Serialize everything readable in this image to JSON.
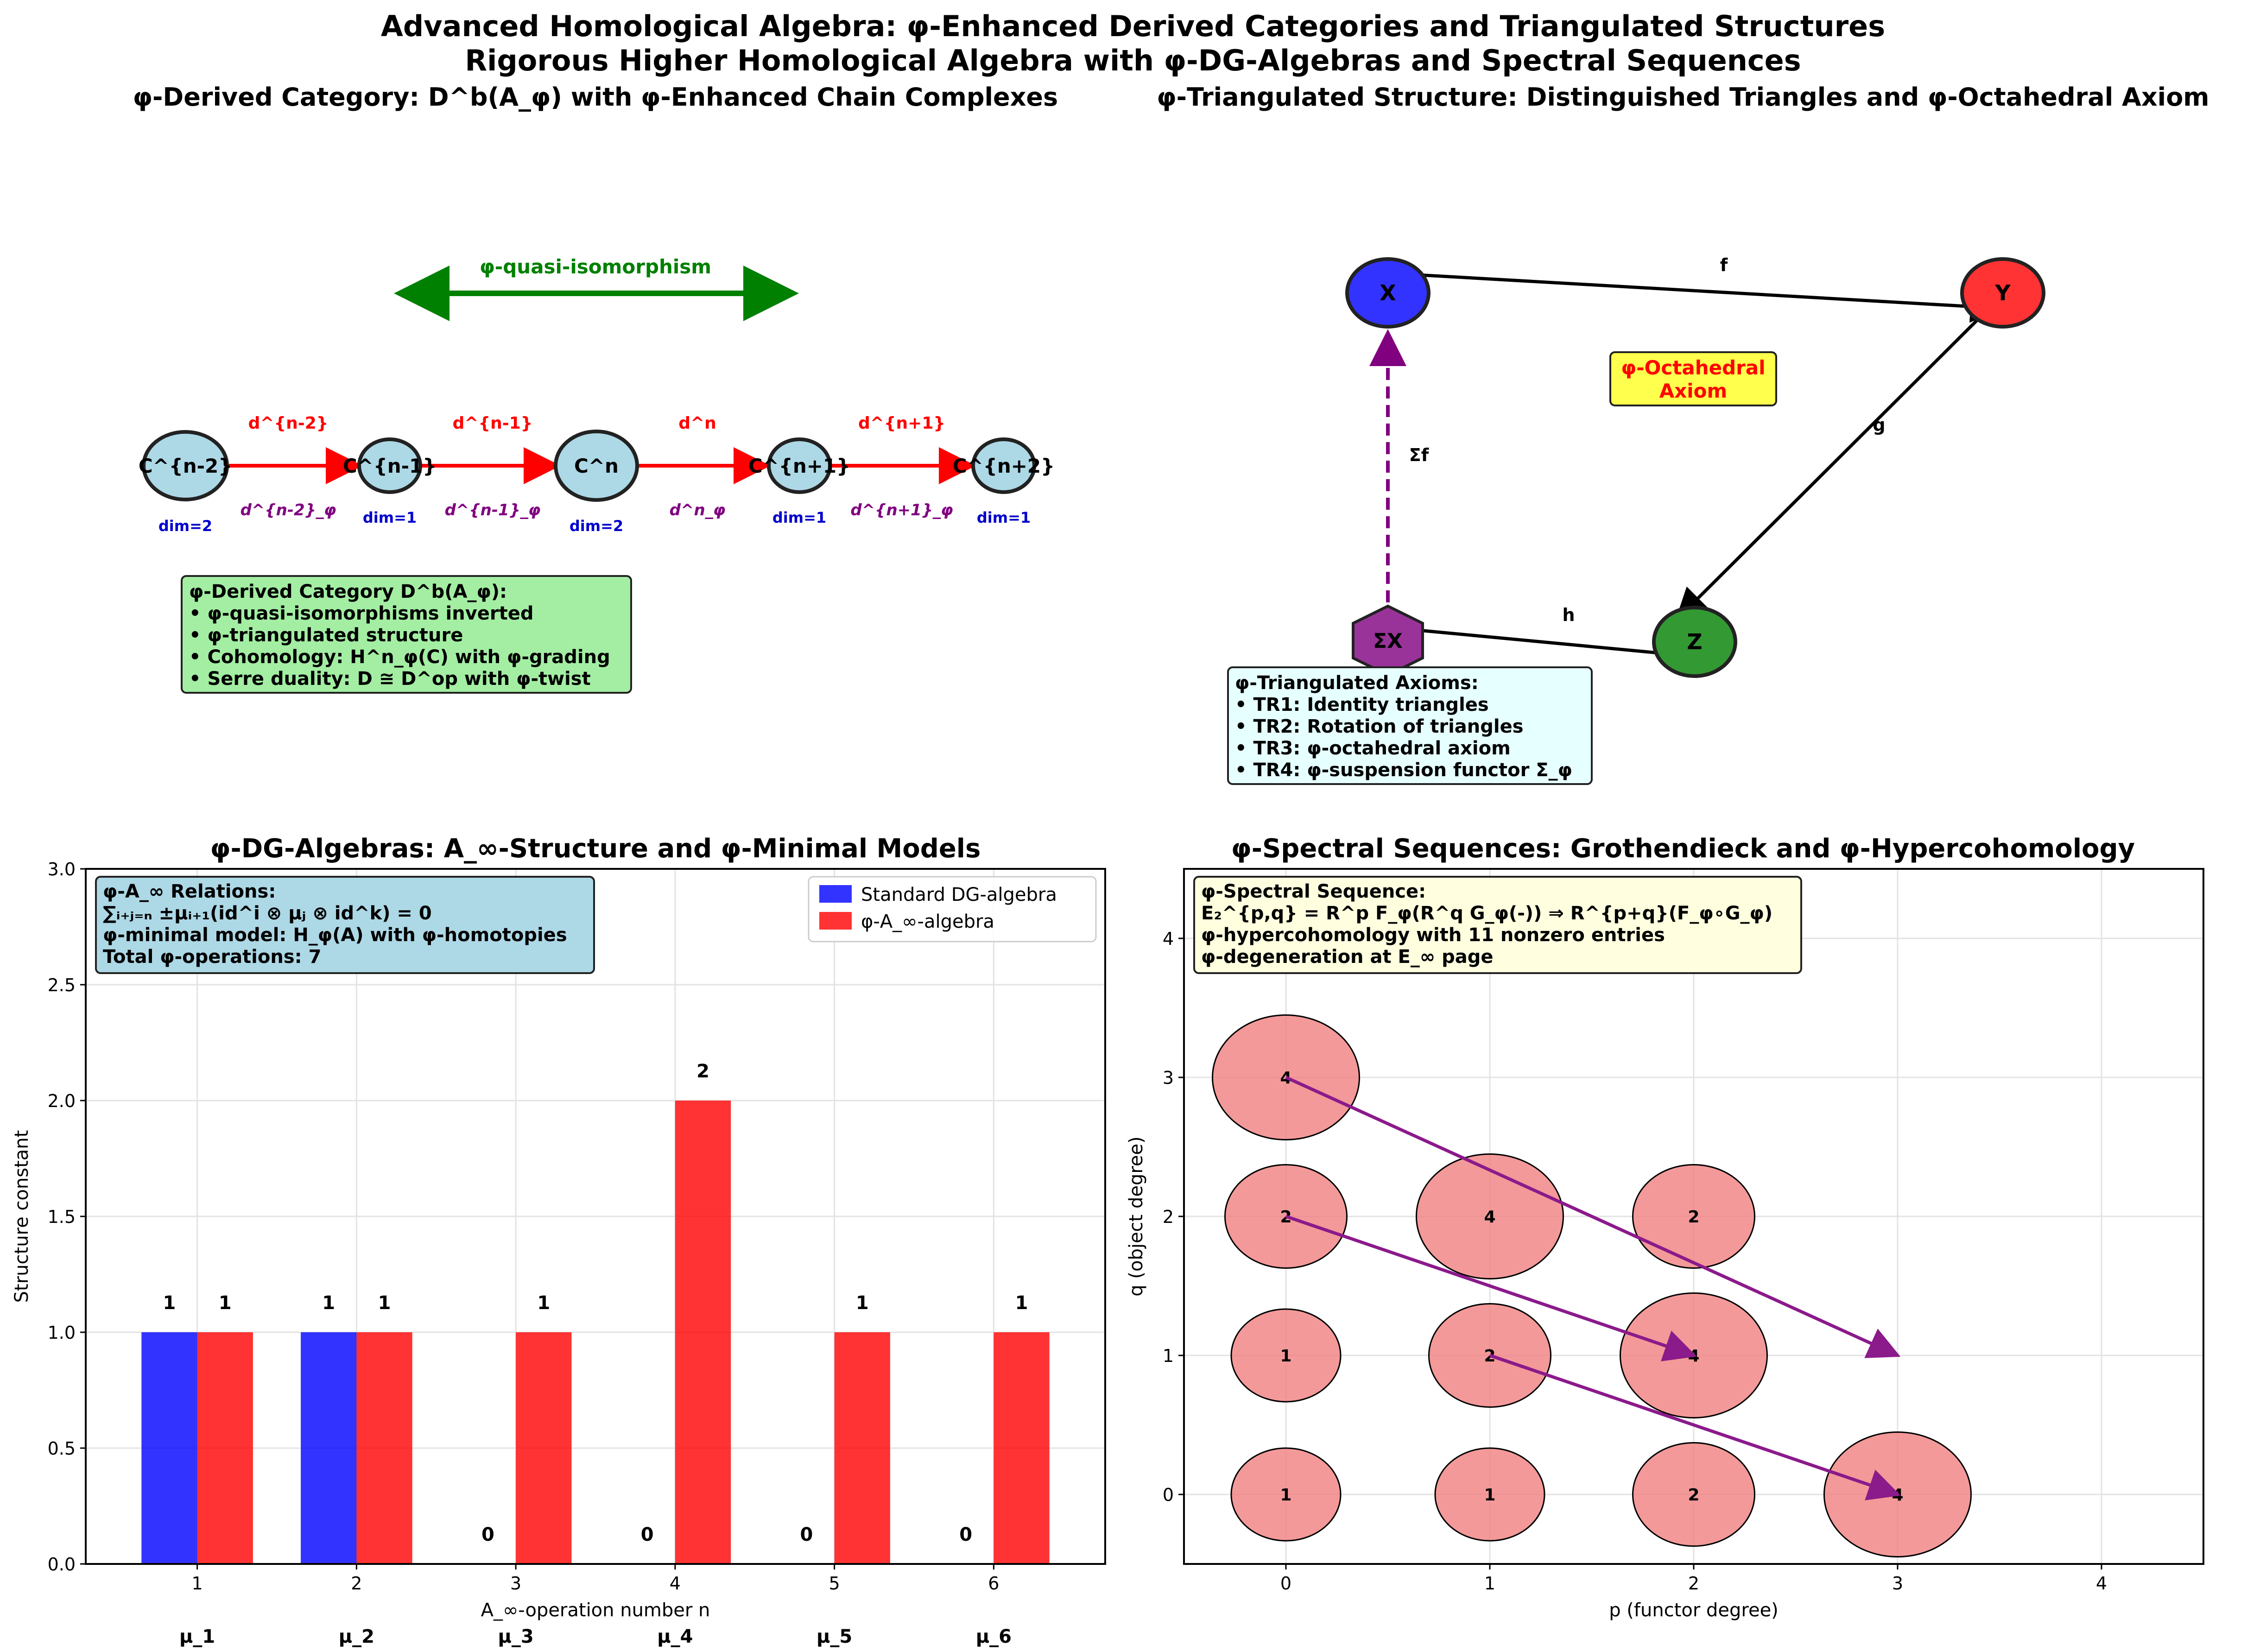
{
  "figure": {
    "title_line1": "Advanced Homological Algebra: φ-Enhanced Derived Categories and Triangulated Structures",
    "title_line2": "Rigorous Higher Homological Algebra with φ-DG-Algebras and Spectral Sequences"
  },
  "panel_derived": {
    "title": "φ-Derived Category: D^b(A_φ) with φ-Enhanced Chain Complexes",
    "quasi_iso_label": "φ-quasi-isomorphism",
    "nodes": [
      {
        "label": "C^{n-2}",
        "dim": "dim=2"
      },
      {
        "label": "C^{n-1}",
        "dim": "dim=1"
      },
      {
        "label": "C^n",
        "dim": "dim=2"
      },
      {
        "label": "C^{n+1}",
        "dim": "dim=1"
      },
      {
        "label": "C^{n+2}",
        "dim": "dim=1"
      }
    ],
    "differentials": [
      {
        "label": "d^{n-2}",
        "phi_label": "d^{n-2}_φ"
      },
      {
        "label": "d^{n-1}",
        "phi_label": "d^{n-1}_φ"
      },
      {
        "label": "d^n",
        "phi_label": "d^n_φ"
      },
      {
        "label": "d^{n+1}",
        "phi_label": "d^{n+1}_φ"
      }
    ],
    "info_box": [
      "φ-Derived Category D^b(A_φ):",
      "• φ-quasi-isomorphisms inverted",
      "• φ-triangulated structure",
      "• Cohomology: H^n_φ(C) with φ-grading",
      "• Serre duality: D ≅ D^op with φ-twist"
    ],
    "colors": {
      "node": "#add8e6",
      "diff": "#ff0000",
      "phi": "#800080",
      "dim": "#0000cc",
      "quasi": "#008000",
      "box": "#a3eea3"
    }
  },
  "panel_triangulated": {
    "title": "φ-Triangulated Structure: Distinguished Triangles and φ-Octahedral Axiom",
    "nodes": {
      "X": "X",
      "Y": "Y",
      "Z": "Z",
      "SX": "ΣX"
    },
    "edges": {
      "f": "f",
      "g": "g",
      "h": "h",
      "sf": "Σf"
    },
    "octahedral_label_line1": "φ-Octahedral",
    "octahedral_label_line2": "Axiom",
    "axioms_box": [
      "φ-Triangulated Axioms:",
      "• TR1: Identity triangles",
      "• TR2: Rotation of triangles",
      "• TR3: φ-octahedral axiom",
      "• TR4: φ-suspension functor Σ_φ"
    ],
    "colors": {
      "X": "#3333ff",
      "Y": "#ff3333",
      "Z": "#339933",
      "SX": "#993399",
      "oct_box": "#ffff4d",
      "axioms_box": "#e6ffff"
    }
  },
  "panel_dg": {
    "title": "φ-DG-Algebras: A_∞-Structure and φ-Minimal Models",
    "info_box": [
      "φ-A_∞ Relations:",
      "∑ᵢ₊ⱼ₌ₙ ±μᵢ₊₁(id^i ⊗ μⱼ ⊗ id^k) = 0",
      "φ-minimal model: H_φ(A) with φ-homotopies",
      "Total φ-operations: 7"
    ],
    "op_labels": [
      "μ_1",
      "μ_2",
      "μ_3",
      "μ_4",
      "μ_5",
      "μ_6"
    ]
  },
  "panel_spectral": {
    "title": "φ-Spectral Sequences: Grothendieck and φ-Hypercohomology",
    "info_box": [
      "φ-Spectral Sequence:",
      "E₂^{p,q} = R^p F_φ(R^q G_φ(-)) ⇒ R^{p+q}(F_φ∘G_φ)",
      "φ-hypercohomology with 11 nonzero entries",
      "φ-degeneration at E_∞ page"
    ]
  },
  "chart_data": [
    {
      "type": "bar",
      "title": "φ-DG-Algebras: A_∞-Structure and φ-Minimal Models",
      "xlabel": "A_∞-operation number n",
      "ylabel": "Structure constant",
      "categories": [
        1,
        2,
        3,
        4,
        5,
        6
      ],
      "x_ticks": [
        "1",
        "2",
        "3",
        "4",
        "5",
        "6"
      ],
      "y_ticks": [
        "0.0",
        "0.5",
        "1.0",
        "1.5",
        "2.0",
        "2.5",
        "3.0"
      ],
      "ylim": [
        0,
        3
      ],
      "series": [
        {
          "name": "Standard DG-algebra",
          "values": [
            1,
            1,
            0,
            0,
            0,
            0
          ],
          "color": "#0000ff"
        },
        {
          "name": "φ-A_∞-algebra",
          "values": [
            1,
            1,
            1,
            2,
            1,
            1
          ],
          "color": "#ff0000"
        }
      ],
      "legend": "top-right",
      "grid": true
    },
    {
      "type": "scatter",
      "title": "φ-Spectral Sequences: Grothendieck and φ-Hypercohomology",
      "xlabel": "p (functor degree)",
      "ylabel": "q (object degree)",
      "x_ticks": [
        "0",
        "1",
        "2",
        "3",
        "4"
      ],
      "y_ticks": [
        "0",
        "1",
        "2",
        "3",
        "4"
      ],
      "xlim": [
        -0.5,
        4.5
      ],
      "ylim": [
        -0.5,
        4.5
      ],
      "points": [
        {
          "p": 0,
          "q": 0,
          "value": "1"
        },
        {
          "p": 1,
          "q": 0,
          "value": "1"
        },
        {
          "p": 2,
          "q": 0,
          "value": "2"
        },
        {
          "p": 3,
          "q": 0,
          "value": "4"
        },
        {
          "p": 0,
          "q": 1,
          "value": "1"
        },
        {
          "p": 1,
          "q": 1,
          "value": "2"
        },
        {
          "p": 2,
          "q": 1,
          "value": "4"
        },
        {
          "p": 0,
          "q": 2,
          "value": "2"
        },
        {
          "p": 1,
          "q": 2,
          "value": "4"
        },
        {
          "p": 2,
          "q": 2,
          "value": "2"
        },
        {
          "p": 0,
          "q": 3,
          "value": "4"
        }
      ],
      "differentials": [
        {
          "from": [
            0,
            3
          ],
          "to": [
            3,
            1
          ]
        },
        {
          "from": [
            0,
            2
          ],
          "to": [
            2,
            1
          ]
        },
        {
          "from": [
            1,
            1
          ],
          "to": [
            3,
            0
          ]
        }
      ],
      "marker_color": "#f08080",
      "arrow_color": "#800080",
      "grid": true
    }
  ]
}
